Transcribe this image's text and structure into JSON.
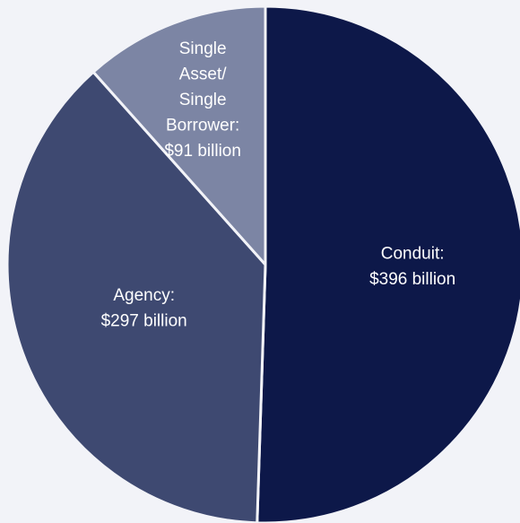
{
  "chart_data": {
    "type": "pie",
    "categories": [
      "Conduit:",
      "Agency:",
      "Single Asset/ Single Borrower:"
    ],
    "values": [
      396,
      297,
      91
    ],
    "value_labels": [
      "$396 billion",
      "$297 billion",
      "$91 billion"
    ],
    "colors": [
      "#0d1849",
      "#3e4971",
      "#7c85a4"
    ]
  }
}
